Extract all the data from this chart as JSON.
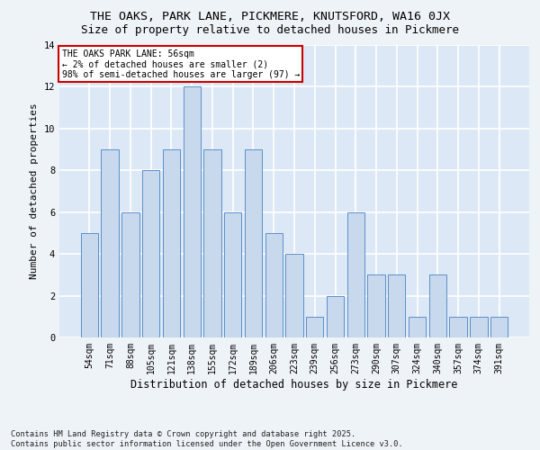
{
  "title1": "THE OAKS, PARK LANE, PICKMERE, KNUTSFORD, WA16 0JX",
  "title2": "Size of property relative to detached houses in Pickmere",
  "xlabel": "Distribution of detached houses by size in Pickmere",
  "ylabel": "Number of detached properties",
  "categories": [
    "54sqm",
    "71sqm",
    "88sqm",
    "105sqm",
    "121sqm",
    "138sqm",
    "155sqm",
    "172sqm",
    "189sqm",
    "206sqm",
    "223sqm",
    "239sqm",
    "256sqm",
    "273sqm",
    "290sqm",
    "307sqm",
    "324sqm",
    "340sqm",
    "357sqm",
    "374sqm",
    "391sqm"
  ],
  "values": [
    5,
    9,
    6,
    8,
    9,
    12,
    9,
    6,
    9,
    5,
    4,
    1,
    2,
    6,
    3,
    3,
    1,
    3,
    1,
    1,
    1
  ],
  "bar_color": "#c9d9ed",
  "bar_edge_color": "#5b8fc9",
  "annotation_text": "THE OAKS PARK LANE: 56sqm\n← 2% of detached houses are smaller (2)\n98% of semi-detached houses are larger (97) →",
  "annotation_box_color": "#ffffff",
  "annotation_box_edge": "#cc0000",
  "ylim": [
    0,
    14
  ],
  "yticks": [
    0,
    2,
    4,
    6,
    8,
    10,
    12,
    14
  ],
  "footer_text": "Contains HM Land Registry data © Crown copyright and database right 2025.\nContains public sector information licensed under the Open Government Licence v3.0.",
  "bg_color": "#dce8f5",
  "fig_color": "#eef3f8",
  "grid_color": "#ffffff",
  "title_fontsize": 9.5,
  "subtitle_fontsize": 9,
  "tick_fontsize": 7,
  "ylabel_fontsize": 8,
  "xlabel_fontsize": 8.5,
  "footer_fontsize": 6.2
}
